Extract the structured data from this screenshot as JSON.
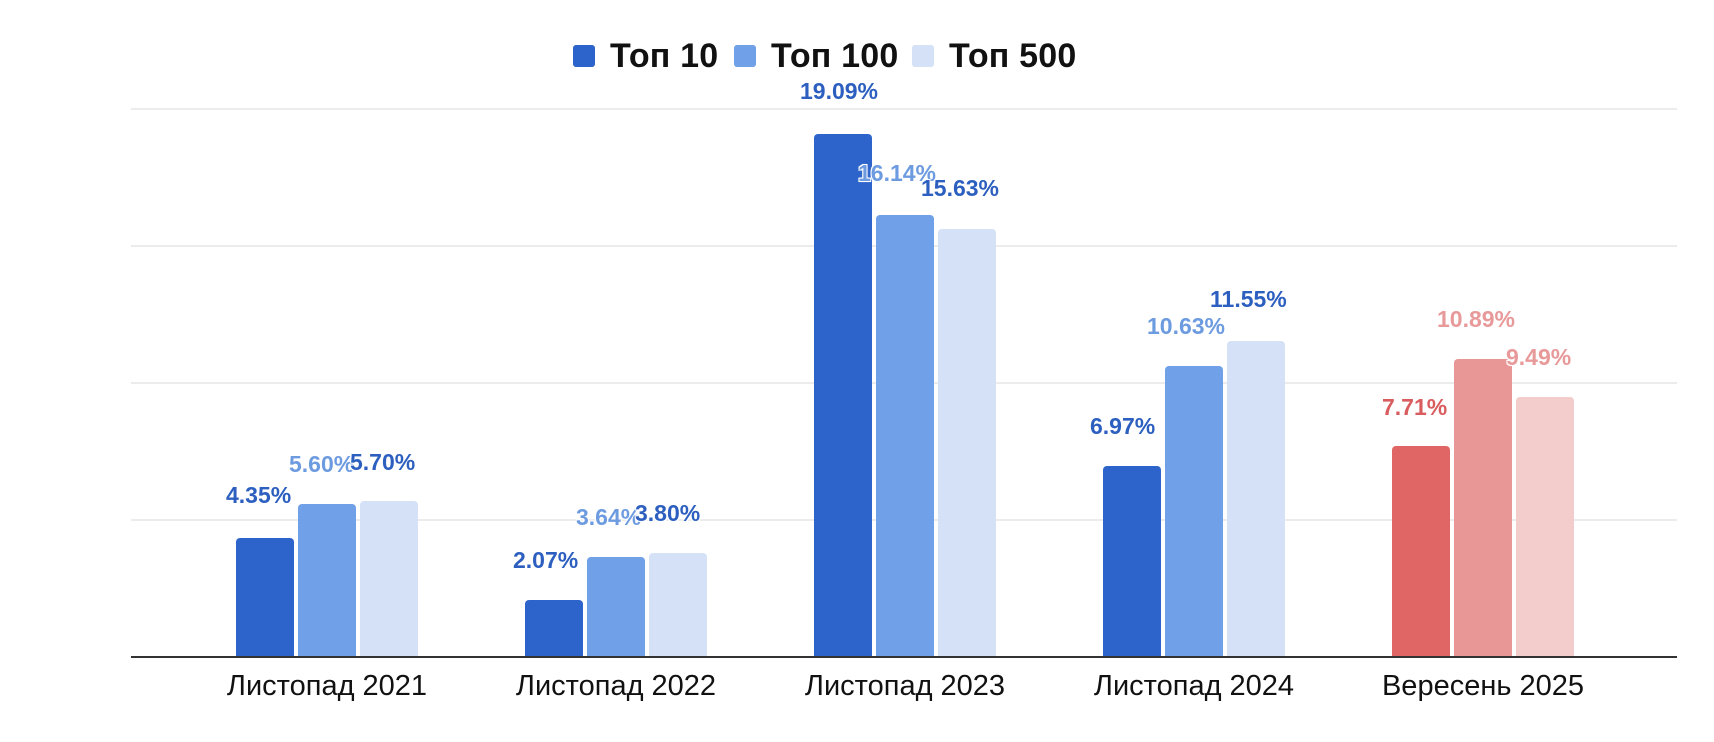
{
  "chart_data": {
    "type": "bar",
    "title": "",
    "xlabel": "",
    "ylabel": "",
    "ylim": [
      0,
      20
    ],
    "grid": true,
    "gridlines": [
      0,
      5,
      10,
      15,
      20
    ],
    "legend_position": "top",
    "categories": [
      "Листопад 2021",
      "Листопад 2022",
      "Листопад 2023",
      "Листопад 2024",
      "Вересень 2025"
    ],
    "series": [
      {
        "name": "Топ 10",
        "values": [
          4.35,
          2.07,
          19.09,
          6.97,
          7.71
        ]
      },
      {
        "name": "Топ 100",
        "values": [
          5.6,
          3.64,
          16.14,
          10.63,
          10.89
        ]
      },
      {
        "name": "Топ 500",
        "values": [
          5.7,
          3.8,
          15.63,
          11.55,
          9.49
        ]
      }
    ],
    "value_labels": [
      [
        "4.35%",
        "5.60%",
        "5.70%"
      ],
      [
        "2.07%",
        "3.64%",
        "3.80%"
      ],
      [
        "19.09%",
        "16.14%",
        "15.63%"
      ],
      [
        "6.97%",
        "10.63%",
        "11.55%"
      ],
      [
        "7.71%",
        "10.89%",
        "9.49%"
      ]
    ],
    "annotations": "Last category (Вересень 2025) highlighted in red shades"
  },
  "legend": {
    "items": [
      {
        "label": "Топ 10",
        "color": "#2c64cb"
      },
      {
        "label": "Топ 100",
        "color": "#70a0e8"
      },
      {
        "label": "Топ 500",
        "color": "#d4e1f6"
      }
    ]
  },
  "colors": {
    "blue": [
      "#2c64cb",
      "#70a0e8",
      "#d4e1f6"
    ],
    "red": [
      "#e06666",
      "#e99697",
      "#f3cccc"
    ],
    "blue_label_dark": "#2c5fbf",
    "blue_label_light": "#6d9be0",
    "red_label_dark": "#d95c5e",
    "red_label_light": "#e8999a"
  }
}
